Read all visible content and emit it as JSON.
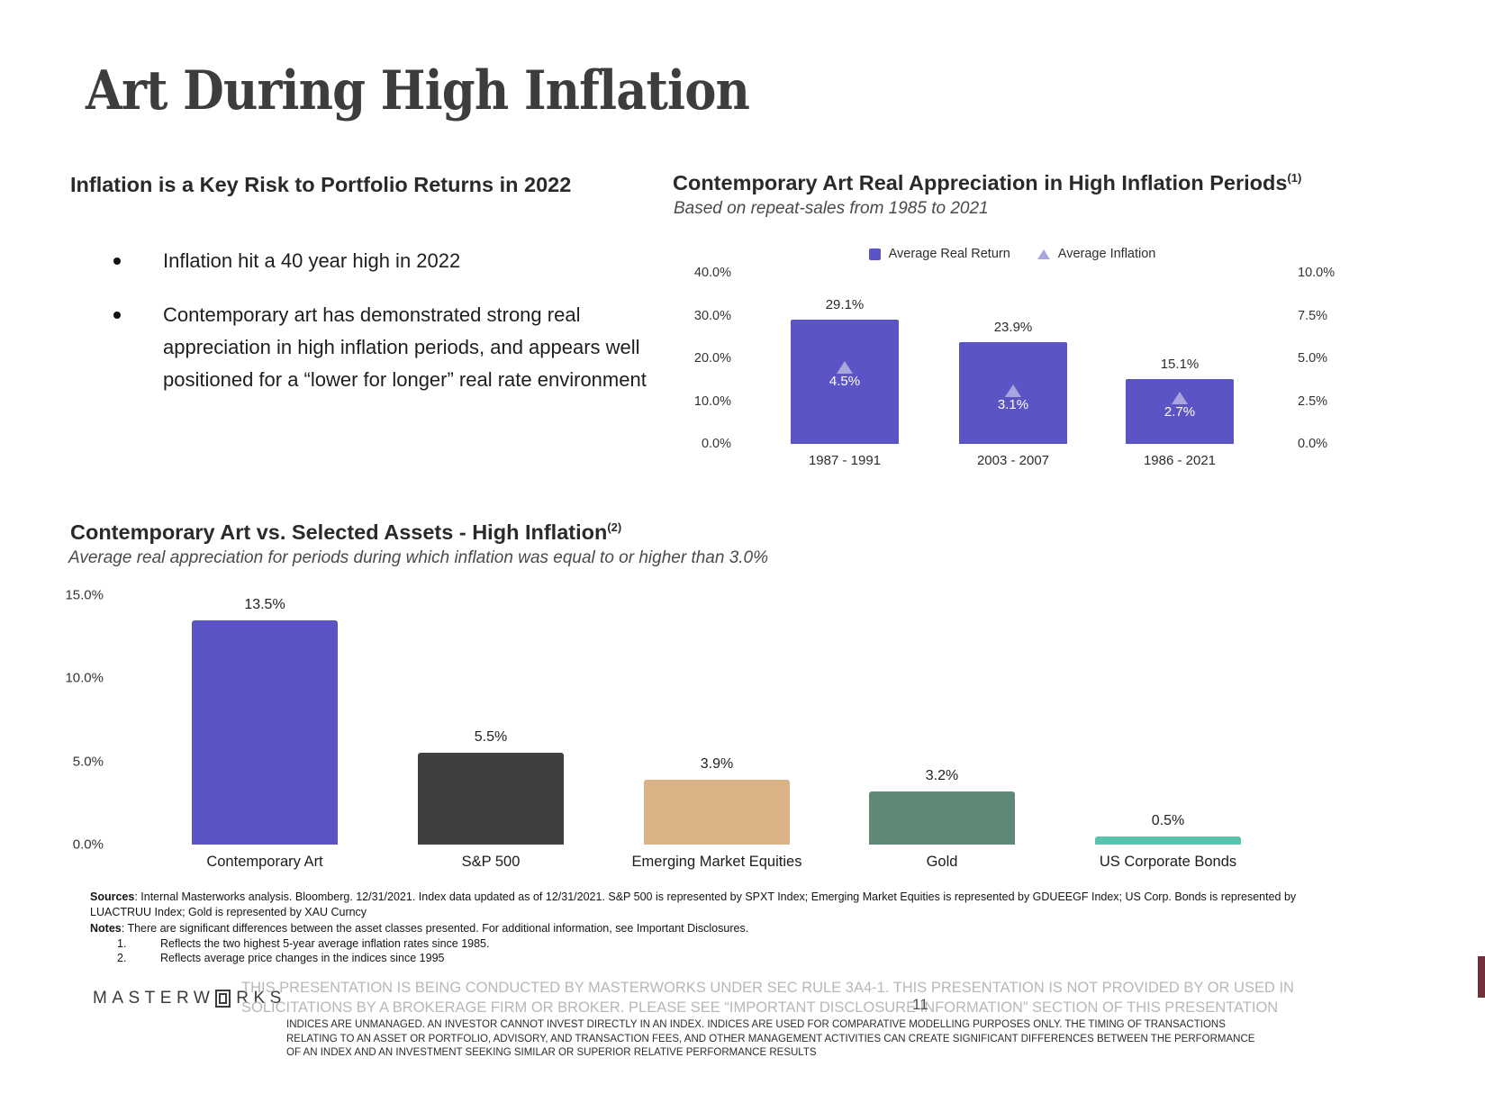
{
  "slide": {
    "title": "Art During High Inflation",
    "page_number": "11"
  },
  "intro": {
    "heading": "Inflation is a Key Risk to Portfolio Returns in 2022",
    "bullets": [
      "Inflation hit a 40 year high in 2022",
      "Contemporary art has demonstrated strong real appreciation in high inflation periods, and appears well positioned for a “lower for longer” real rate environment"
    ]
  },
  "chart_data": [
    {
      "type": "bar",
      "title": "Contemporary Art Real Appreciation in High Inflation Periods",
      "title_superscript": "(1)",
      "subtitle": "Based on repeat-sales from 1985 to 2021",
      "categories": [
        "1987 - 1991",
        "2003 - 2007",
        "1986 - 2021"
      ],
      "series": [
        {
          "name": "Average Real Return",
          "marker": "square",
          "color": "#5B54C4",
          "axis": "left",
          "values": [
            29.1,
            23.9,
            15.1
          ],
          "labels": [
            "29.1%",
            "23.9%",
            "15.1%"
          ]
        },
        {
          "name": "Average Inflation",
          "marker": "triangle",
          "color": "#A9A5DE",
          "axis": "right",
          "values": [
            4.5,
            3.1,
            2.7
          ],
          "labels": [
            "4.5%",
            "3.1%",
            "2.7%"
          ]
        }
      ],
      "left_axis": {
        "range": [
          0,
          40
        ],
        "ticks": [
          "40.0%",
          "30.0%",
          "20.0%",
          "10.0%",
          "0.0%"
        ]
      },
      "right_axis": {
        "range": [
          0,
          10
        ],
        "ticks": [
          "10.0%",
          "7.5%",
          "5.0%",
          "2.5%",
          "0.0%"
        ]
      },
      "legend_position": "top",
      "grid": false
    },
    {
      "type": "bar",
      "title": "Contemporary Art vs. Selected Assets - High Inflation",
      "title_superscript": "(2)",
      "subtitle": "Average real appreciation for periods during which inflation was equal to or higher than 3.0%",
      "categories": [
        "Contemporary Art",
        "S&P 500",
        "Emerging Market Equities",
        "Gold",
        "US Corporate Bonds"
      ],
      "values": [
        13.5,
        5.5,
        3.9,
        3.2,
        0.5
      ],
      "labels": [
        "13.5%",
        "5.5%",
        "3.9%",
        "3.2%",
        "0.5%"
      ],
      "bar_colors": [
        "#5B54C4",
        "#3F3F3F",
        "#D9B286",
        "#5E8977",
        "#59C3AD"
      ],
      "yaxis": {
        "range": [
          0,
          15
        ],
        "ticks": [
          "15.0%",
          "10.0%",
          "5.0%",
          "0.0%"
        ]
      },
      "legend_position": "none",
      "grid": false
    }
  ],
  "footer": {
    "sources_label": "Sources",
    "sources_text": ": Internal Masterworks analysis. Bloomberg. 12/31/2021. Index data updated as of 12/31/2021. S&P 500 is represented by SPXT Index; Emerging Market Equities is represented by GDUEEGF Index; US Corp. Bonds is represented by LUACTRUU Index; Gold is represented by XAU Curncy",
    "notes_label": "Notes",
    "notes_text": ": There are significant differences between the asset classes presented. For additional information, see Important Disclosures.",
    "footnotes": [
      {
        "num": "1.",
        "text": "Reflects the two highest 5-year average inflation rates since 1985."
      },
      {
        "num": "2.",
        "text": "Reflects average price changes in the indices since 1995"
      }
    ],
    "logo": {
      "part1": "MASTERW",
      "boxed_letter": "O",
      "part2": "RKS"
    },
    "disclaimer": "THIS PRESENTATION  IS BEING CONDUCTED BY MASTERWORKS UNDER SEC RULE 3A4-1. THIS PRESENTATION  IS NOT PROVIDED BY OR USED IN SOLICITATIONS BY A BROKERAGE FIRM OR BROKER. PLEASE SEE “IMPORTANT DISCLOSURE INFORMATION” SECTION OF THIS PRESENTATION",
    "indices_note": "INDICES ARE UNMANAGED. AN INVESTOR CANNOT INVEST DIRECTLY IN AN INDEX. INDICES ARE USED FOR COMPARATIVE MODELLING PURPOSES ONLY. THE TIMING OF TRANSACTIONS RELATING TO AN ASSET OR PORTFOLIO, ADVISORY, AND TRANSACTION FEES, AND OTHER MANAGEMENT ACTIVITIES CAN CREATE SIGNIFICANT DIFFERENCES BETWEEN THE PERFORMANCE OF AN INDEX AND AN INVESTMENT SEEKING SIMILAR OR SUPERIOR RELATIVE PERFORMANCE RESULTS"
  },
  "colors": {
    "accent_purple": "#5B54C4",
    "light_purple": "#A9A5DE",
    "sp500_bar": "#3F3F3F",
    "emerging_bar": "#D9B286",
    "gold_bar": "#5E8977",
    "bonds_bar": "#59C3AD"
  }
}
